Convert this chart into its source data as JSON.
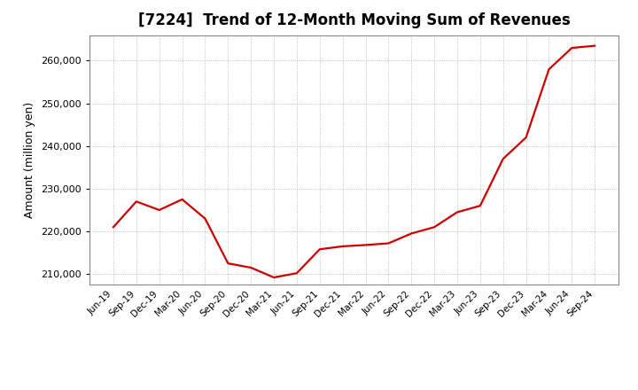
{
  "title": "[7224]  Trend of 12-Month Moving Sum of Revenues",
  "ylabel": "Amount (million yen)",
  "line_color": "#cc0000",
  "background_color": "#ffffff",
  "grid_color": "#999999",
  "ylim": [
    207500,
    266000
  ],
  "yticks": [
    210000,
    220000,
    230000,
    240000,
    250000,
    260000
  ],
  "x_labels": [
    "Jun-19",
    "Sep-19",
    "Dec-19",
    "Mar-20",
    "Jun-20",
    "Sep-20",
    "Dec-20",
    "Mar-21",
    "Jun-21",
    "Sep-21",
    "Dec-21",
    "Mar-22",
    "Jun-22",
    "Sep-22",
    "Dec-22",
    "Mar-23",
    "Jun-23",
    "Sep-23",
    "Dec-23",
    "Mar-24",
    "Jun-24",
    "Sep-24"
  ],
  "values": [
    221000,
    227000,
    225000,
    227500,
    223000,
    212500,
    211500,
    209200,
    210200,
    215800,
    216500,
    216800,
    217200,
    219500,
    221000,
    224500,
    226000,
    237000,
    242000,
    258000,
    263000,
    263500
  ],
  "title_fontsize": 12,
  "ylabel_fontsize": 9,
  "tick_fontsize": 8,
  "xtick_fontsize": 7.5,
  "line_width": 1.6
}
